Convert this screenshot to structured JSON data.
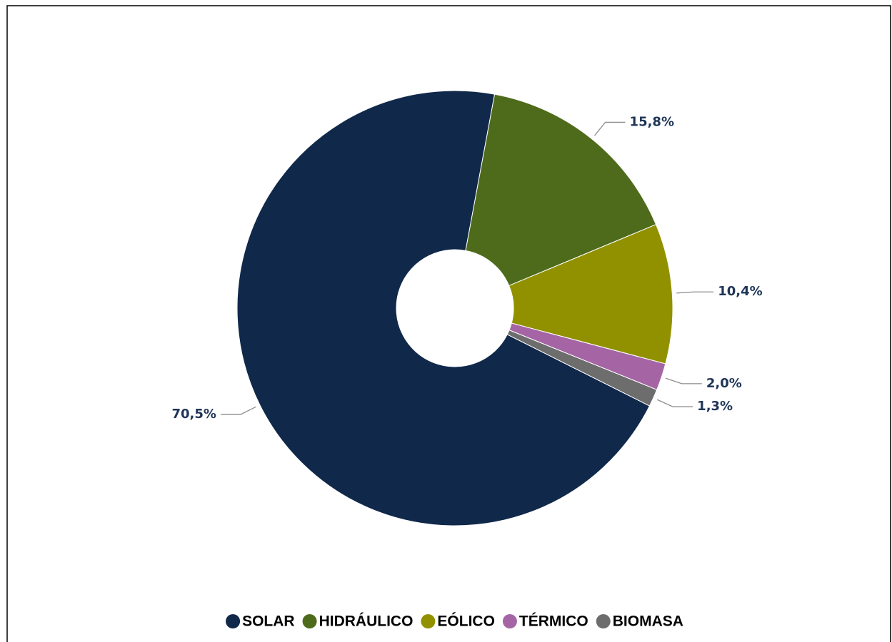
{
  "chart_data": {
    "type": "donut",
    "categories": [
      "SOLAR",
      "HIDRÁULICO",
      "EÓLICO",
      "TÉRMICO",
      "BIOMASA"
    ],
    "values": [
      70.5,
      15.8,
      10.4,
      2.0,
      1.3
    ],
    "value_labels": [
      "70,5%",
      "15,8%",
      "10,4%",
      "2,0%",
      "1,3%"
    ],
    "colors": [
      "#10284a",
      "#4e6b1b",
      "#919100",
      "#a565a5",
      "#6d6d6d"
    ],
    "legend": "bottom"
  }
}
